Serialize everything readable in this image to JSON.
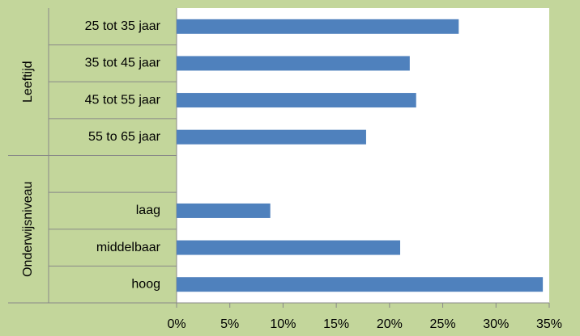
{
  "chart_data": {
    "type": "bar",
    "orientation": "horizontal",
    "color": "#4f81bd",
    "groups": [
      {
        "name": "Leeftijd",
        "categories": [
          "25 tot 35 jaar",
          "35 tot 45 jaar",
          "45 tot 55 jaar",
          "55 to 65 jaar"
        ],
        "values": [
          26.5,
          21.9,
          22.5,
          17.8
        ]
      },
      {
        "name": "Onderwijsniveau",
        "categories": [
          null,
          "laag",
          "middelbaar",
          "hoog"
        ],
        "values": [
          null,
          8.8,
          21.0,
          34.4
        ]
      }
    ],
    "xlim": [
      0,
      35
    ],
    "xticks": [
      {
        "value": 0,
        "label": "0%"
      },
      {
        "value": 5,
        "label": "5%"
      },
      {
        "value": 10,
        "label": "10%"
      },
      {
        "value": 15,
        "label": "15%"
      },
      {
        "value": 20,
        "label": "20%"
      },
      {
        "value": 25,
        "label": "25%"
      },
      {
        "value": 30,
        "label": "30%"
      },
      {
        "value": 35,
        "label": "35%"
      }
    ]
  }
}
